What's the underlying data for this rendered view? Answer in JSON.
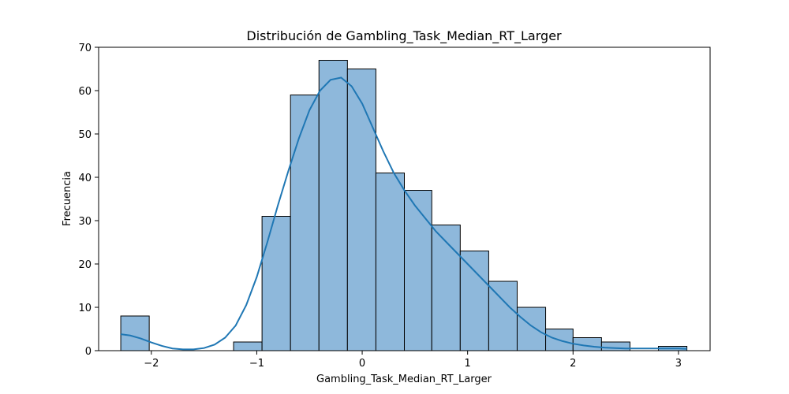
{
  "chart_data": {
    "type": "bar",
    "title": "Distribución de Gambling_Task_Median_RT_Larger",
    "xlabel": "Gambling_Task_Median_RT_Larger",
    "ylabel": "Frecuencia",
    "xlim": [
      -2.5,
      3.3
    ],
    "ylim": [
      0,
      70
    ],
    "x_ticks": [
      -2,
      -1,
      0,
      1,
      2,
      3
    ],
    "x_tick_labels": [
      "−2",
      "−1",
      "0",
      "1",
      "2",
      "3"
    ],
    "y_ticks": [
      0,
      10,
      20,
      30,
      40,
      50,
      60,
      70
    ],
    "y_tick_labels": [
      "0",
      "10",
      "20",
      "30",
      "40",
      "50",
      "60",
      "70"
    ],
    "grid": false,
    "legend": "none",
    "bins": [
      {
        "x0": -2.29,
        "x1": -2.02,
        "count": 8
      },
      {
        "x0": -2.02,
        "x1": -1.76,
        "count": 0
      },
      {
        "x0": -1.76,
        "x1": -1.49,
        "count": 0
      },
      {
        "x0": -1.49,
        "x1": -1.22,
        "count": 0
      },
      {
        "x0": -1.22,
        "x1": -0.95,
        "count": 2
      },
      {
        "x0": -0.95,
        "x1": -0.68,
        "count": 31
      },
      {
        "x0": -0.68,
        "x1": -0.41,
        "count": 59
      },
      {
        "x0": -0.41,
        "x1": -0.14,
        "count": 67
      },
      {
        "x0": -0.14,
        "x1": 0.13,
        "count": 65
      },
      {
        "x0": 0.13,
        "x1": 0.4,
        "count": 41
      },
      {
        "x0": 0.4,
        "x1": 0.66,
        "count": 37
      },
      {
        "x0": 0.66,
        "x1": 0.93,
        "count": 29
      },
      {
        "x0": 0.93,
        "x1": 1.2,
        "count": 23
      },
      {
        "x0": 1.2,
        "x1": 1.47,
        "count": 16
      },
      {
        "x0": 1.47,
        "x1": 1.74,
        "count": 10
      },
      {
        "x0": 1.74,
        "x1": 2.0,
        "count": 5
      },
      {
        "x0": 2.0,
        "x1": 2.27,
        "count": 3
      },
      {
        "x0": 2.27,
        "x1": 2.54,
        "count": 2
      },
      {
        "x0": 2.54,
        "x1": 2.81,
        "count": 0
      },
      {
        "x0": 2.81,
        "x1": 3.08,
        "count": 1
      }
    ],
    "kde": {
      "x": [
        -2.29,
        -2.2,
        -2.1,
        -2.0,
        -1.9,
        -1.8,
        -1.7,
        -1.6,
        -1.5,
        -1.4,
        -1.3,
        -1.2,
        -1.1,
        -1.0,
        -0.9,
        -0.8,
        -0.7,
        -0.6,
        -0.5,
        -0.4,
        -0.3,
        -0.2,
        -0.1,
        0.0,
        0.1,
        0.2,
        0.3,
        0.4,
        0.5,
        0.6,
        0.7,
        0.8,
        0.9,
        1.0,
        1.1,
        1.2,
        1.3,
        1.4,
        1.5,
        1.6,
        1.7,
        1.8,
        1.9,
        2.0,
        2.1,
        2.2,
        2.3,
        2.4,
        2.5,
        2.6,
        2.7,
        2.8,
        2.9,
        3.0,
        3.08
      ],
      "y": [
        3.8,
        3.5,
        2.8,
        1.9,
        1.1,
        0.5,
        0.3,
        0.3,
        0.6,
        1.4,
        3.0,
        5.8,
        10.5,
        17.0,
        25.0,
        33.5,
        41.5,
        49.0,
        55.5,
        60.0,
        62.5,
        63.0,
        61.0,
        57.0,
        51.5,
        46.0,
        41.0,
        37.0,
        33.5,
        30.5,
        27.5,
        25.0,
        22.5,
        20.0,
        17.5,
        15.0,
        12.5,
        10.0,
        7.8,
        5.8,
        4.2,
        3.0,
        2.2,
        1.6,
        1.2,
        0.9,
        0.7,
        0.6,
        0.5,
        0.5,
        0.5,
        0.5,
        0.5,
        0.5,
        0.4
      ]
    },
    "colors": {
      "bar_fill": "#8eb8db",
      "bar_edge": "#000000",
      "kde_line": "#1f77b4",
      "axes": "#000000"
    }
  }
}
